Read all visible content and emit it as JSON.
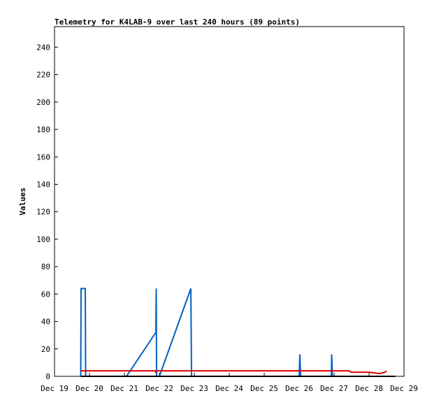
{
  "chart_data": {
    "type": "line",
    "title": "Telemetry for K4LAB-9 over last 240 hours (89 points)",
    "xlabel": "",
    "ylabel": "Values",
    "x_tick_labels": [
      "Dec 19",
      "Dec 20",
      "Dec 21",
      "Dec 22",
      "Dec 23",
      "Dec 24",
      "Dec 25",
      "Dec 26",
      "Dec 27",
      "Dec 28",
      "Dec 29"
    ],
    "xlim": [
      0,
      10
    ],
    "ylim": [
      0,
      255
    ],
    "y_ticks": [
      0,
      20,
      40,
      60,
      80,
      100,
      120,
      140,
      160,
      180,
      200,
      220,
      240
    ],
    "grid": false,
    "series": [
      {
        "color": "#0060c0",
        "points": [
          [
            0.75,
            0
          ],
          [
            0.76,
            64
          ],
          [
            0.88,
            64
          ],
          [
            0.89,
            0
          ],
          [
            2.06,
            0
          ],
          [
            2.9,
            32
          ],
          [
            2.91,
            64
          ],
          [
            2.92,
            0
          ],
          [
            3.0,
            0
          ],
          [
            3.9,
            64
          ],
          [
            3.91,
            32
          ],
          [
            3.92,
            0
          ],
          [
            7.0,
            0
          ],
          [
            7.02,
            16
          ],
          [
            7.04,
            0
          ],
          [
            7.92,
            0
          ],
          [
            7.93,
            16
          ],
          [
            7.95,
            0
          ],
          [
            9.75,
            0
          ]
        ]
      },
      {
        "color": "#e00000",
        "points": [
          [
            0.75,
            4
          ],
          [
            1.0,
            4
          ],
          [
            2.0,
            4
          ],
          [
            2.88,
            4
          ],
          [
            2.9,
            3
          ],
          [
            2.95,
            4
          ],
          [
            4.0,
            4
          ],
          [
            5.0,
            4
          ],
          [
            6.0,
            4
          ],
          [
            7.0,
            4
          ],
          [
            8.0,
            4
          ],
          [
            8.4,
            4
          ],
          [
            8.5,
            3
          ],
          [
            9.0,
            3
          ],
          [
            9.3,
            2
          ],
          [
            9.45,
            3
          ],
          [
            9.5,
            4
          ]
        ]
      },
      {
        "color": "#000000",
        "points": [
          [
            0.75,
            0
          ],
          [
            9.75,
            0
          ]
        ]
      }
    ]
  }
}
